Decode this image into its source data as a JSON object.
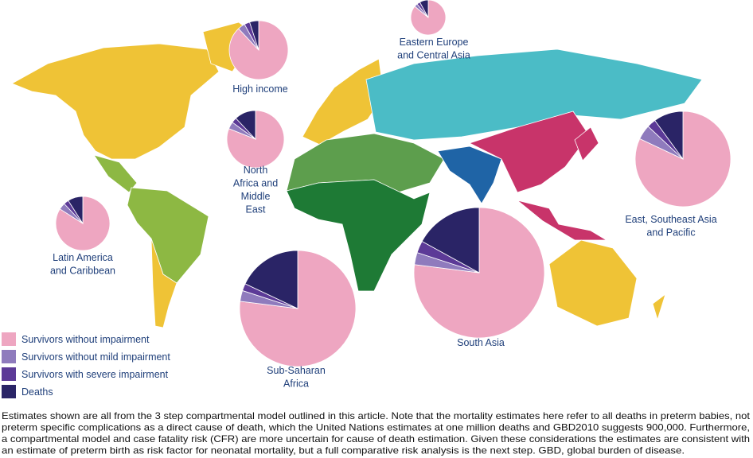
{
  "legend": [
    {
      "name": "Survivors without impairment",
      "color": "#eea6c1"
    },
    {
      "name": "Survivors without mild impairment",
      "color": "#8f7bbd"
    },
    {
      "name": "Survivors with severe impairment",
      "color": "#5c3a97"
    },
    {
      "name": "Deaths",
      "color": "#2a2466"
    }
  ],
  "regions": [
    {
      "lines": [
        "Eastern Europe",
        "and Central Asia"
      ],
      "values": [
        86,
        3,
        3,
        8
      ]
    },
    {
      "lines": [
        "High income"
      ],
      "values": [
        88,
        4,
        3,
        5
      ]
    },
    {
      "lines": [
        "North",
        "Africa and",
        "Middle",
        "East"
      ],
      "values": [
        81,
        4,
        3,
        12
      ]
    },
    {
      "lines": [
        "Latin America",
        "and Caribbean"
      ],
      "values": [
        84,
        4,
        3,
        9
      ]
    },
    {
      "lines": [
        "East, Southeast Asia",
        "and Pacific"
      ],
      "values": [
        82,
        5,
        3,
        10
      ]
    },
    {
      "lines": [
        "South Asia"
      ],
      "values": [
        77,
        3,
        3,
        17
      ]
    },
    {
      "lines": [
        "Sub-Saharan",
        "Africa"
      ],
      "values": [
        77,
        3,
        2,
        18
      ]
    }
  ],
  "caption": [
    "Estimates shown are all from the 3 step compartmental model outlined in this article. Note that the mortality estimates here refer to all deaths in preterm babies, not",
    "preterm specific complications as a direct cause of death, which the United Nations estimates at one million deaths and GBD2010 suggests 900,000. Furthermore,",
    "a compartmental model and case fatality risk (CFR) are more uncertain for cause of death estimation. Given these considerations the estimates are consistent with",
    "an estimate of preterm birth as risk factor for neonatal mortality, but a full comparative risk analysis is the next step. GBD, global burden of disease."
  ]
}
